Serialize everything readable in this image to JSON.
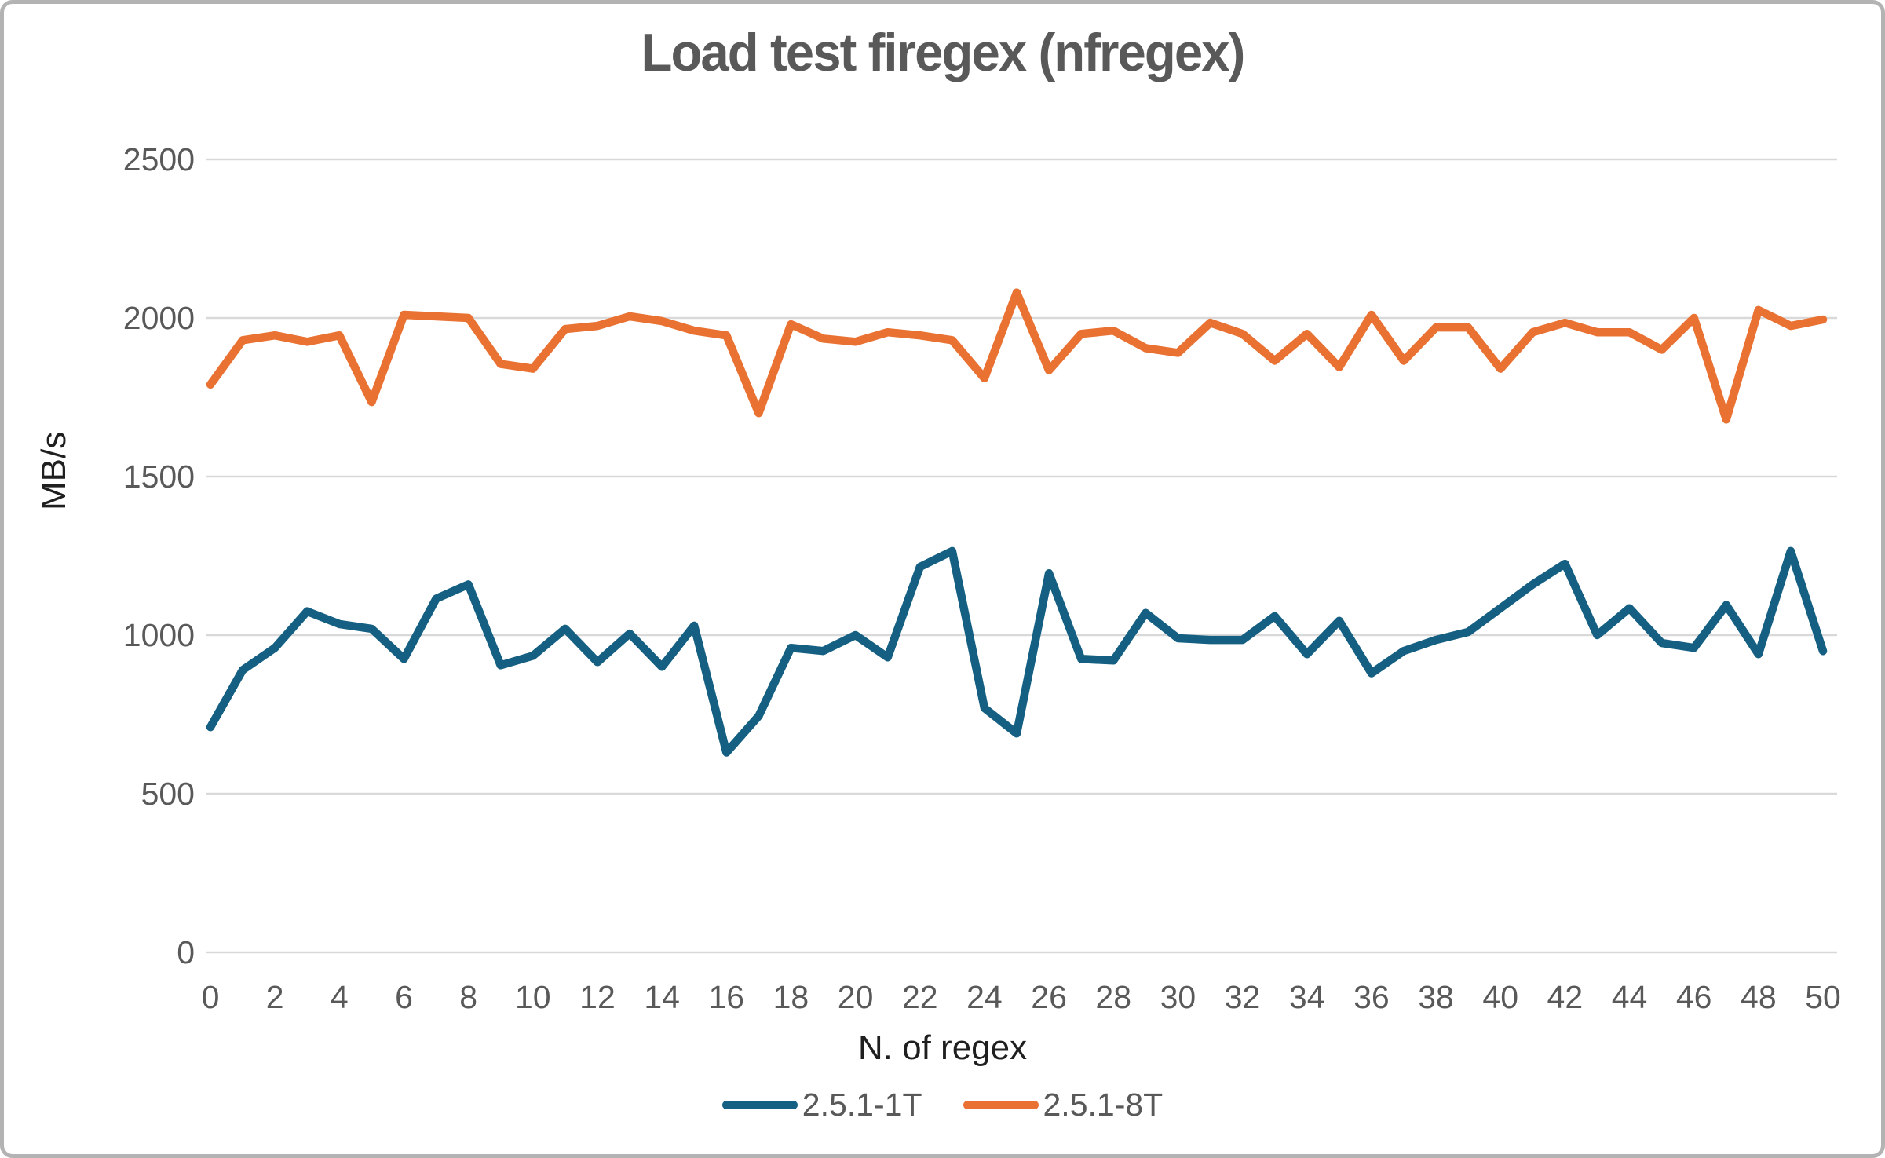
{
  "chart": {
    "title": "Load test firegex (nfregex)",
    "y_axis_title": "MB/s",
    "x_axis_title": "N. of regex",
    "colors": {
      "series_1T": "#156082",
      "series_8T": "#E97132",
      "gridline": "#D9D9D9",
      "title_text": "#595959",
      "tick_text": "#595959",
      "axis_title_text": "#1f1f1f",
      "frame_border": "#b3b3b3",
      "background": "#ffffff"
    },
    "legend": [
      {
        "name": "2.5.1-1T",
        "color": "#156082"
      },
      {
        "name": "2.5.1-8T",
        "color": "#E97132"
      }
    ]
  },
  "chart_data": {
    "type": "line",
    "title": "Load test firegex (nfregex)",
    "xlabel": "N. of regex",
    "ylabel": "MB/s",
    "xlim": [
      0,
      50
    ],
    "ylim": [
      0,
      2500
    ],
    "x_ticks": [
      0,
      2,
      4,
      6,
      8,
      10,
      12,
      14,
      16,
      18,
      20,
      22,
      24,
      26,
      28,
      30,
      32,
      34,
      36,
      38,
      40,
      42,
      44,
      46,
      48,
      50
    ],
    "y_ticks": [
      0,
      500,
      1000,
      1500,
      2000,
      2500
    ],
    "grid": true,
    "legend_position": "bottom",
    "x": [
      0,
      1,
      2,
      3,
      4,
      5,
      6,
      7,
      8,
      9,
      10,
      11,
      12,
      13,
      14,
      15,
      16,
      17,
      18,
      19,
      20,
      21,
      22,
      23,
      24,
      25,
      26,
      27,
      28,
      29,
      30,
      31,
      32,
      33,
      34,
      35,
      36,
      37,
      38,
      39,
      40,
      41,
      42,
      43,
      44,
      45,
      46,
      47,
      48,
      49,
      50
    ],
    "series": [
      {
        "name": "2.5.1-1T",
        "color": "#156082",
        "values": [
          710,
          890,
          960,
          1075,
          1035,
          1020,
          925,
          1115,
          1160,
          905,
          935,
          1020,
          915,
          1005,
          900,
          1030,
          630,
          745,
          960,
          950,
          1000,
          930,
          1215,
          1265,
          770,
          690,
          1195,
          925,
          920,
          1070,
          990,
          985,
          985,
          1060,
          940,
          1045,
          880,
          950,
          985,
          1010,
          1085,
          1160,
          1225,
          1000,
          1085,
          975,
          960,
          1095,
          940,
          1265,
          950
        ]
      },
      {
        "name": "2.5.1-8T",
        "color": "#E97132",
        "values": [
          1790,
          1930,
          1945,
          1925,
          1945,
          1735,
          2010,
          2005,
          2000,
          1855,
          1840,
          1965,
          1975,
          2005,
          1990,
          1960,
          1945,
          1700,
          1980,
          1935,
          1925,
          1955,
          1945,
          1930,
          1810,
          2080,
          1835,
          1950,
          1960,
          1905,
          1890,
          1985,
          1950,
          1865,
          1950,
          1845,
          2010,
          1865,
          1970,
          1970,
          1840,
          1955,
          1985,
          1955,
          1955,
          1900,
          2000,
          1680,
          2025,
          1975,
          1995
        ]
      }
    ]
  }
}
